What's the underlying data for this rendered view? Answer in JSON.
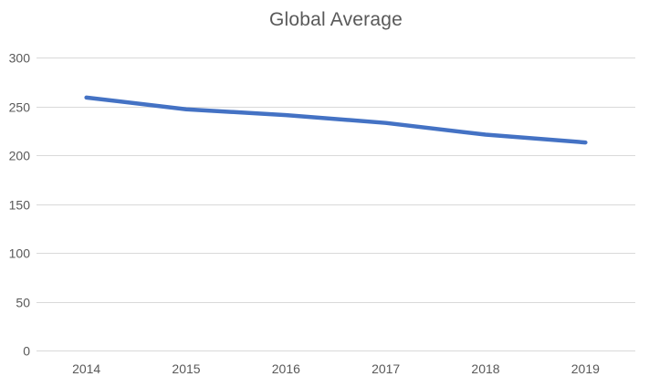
{
  "chart_data": {
    "type": "line",
    "title": "Global Average",
    "categories": [
      "2014",
      "2015",
      "2016",
      "2017",
      "2018",
      "2019"
    ],
    "series": [
      {
        "name": "Global Average",
        "values": [
          259,
          247,
          241,
          233,
          221,
          213
        ]
      }
    ],
    "xlabel": "",
    "ylabel": "",
    "ylim": [
      0,
      300
    ],
    "ytick_step": 50,
    "ytick_labels": [
      "0",
      "50",
      "100",
      "150",
      "200",
      "250",
      "300"
    ],
    "grid": true,
    "legend": false,
    "colors": {
      "line": "#4472C4",
      "gridline": "#D9D9D9",
      "tick_text": "#595959",
      "title_text": "#595959",
      "background": "#FFFFFF"
    }
  }
}
